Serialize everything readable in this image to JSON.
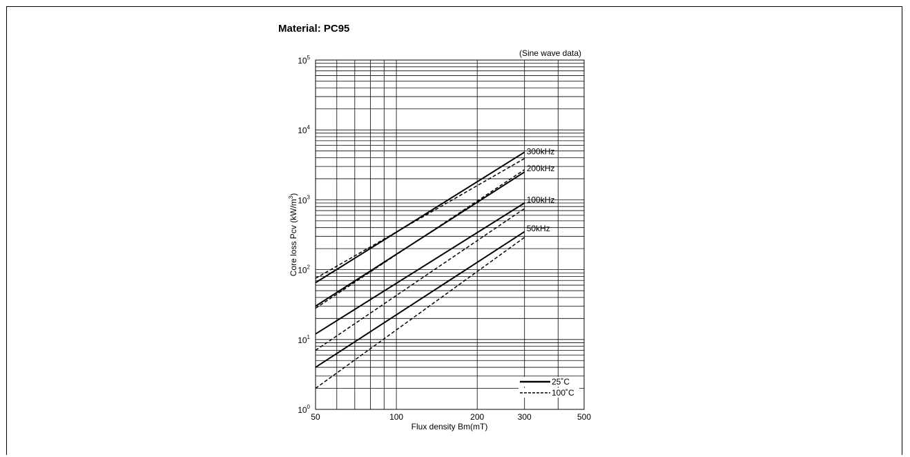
{
  "title": "Material: PC95",
  "note": "(Sine wave data)",
  "chart_data": {
    "type": "line",
    "xscale": "log",
    "yscale": "log",
    "xlim": [
      50,
      500
    ],
    "ylim": [
      1,
      100000
    ],
    "xlabel": "Flux density Bm(mT)",
    "ylabel_main": "Core loss Pcv (kW/m",
    "ylabel_sup": "3",
    "ylabel_end": ")",
    "xticks": [
      {
        "v": 50,
        "label": "50"
      },
      {
        "v": 100,
        "label": "100"
      },
      {
        "v": 200,
        "label": "200"
      },
      {
        "v": 300,
        "label": "300"
      },
      {
        "v": 500,
        "label": "500"
      }
    ],
    "yticks": [
      {
        "v": 1,
        "base": "10",
        "exp": "0"
      },
      {
        "v": 10,
        "base": "10",
        "exp": "1"
      },
      {
        "v": 100,
        "base": "10",
        "exp": "2"
      },
      {
        "v": 1000,
        "base": "10",
        "exp": "3"
      },
      {
        "v": 10000,
        "base": "10",
        "exp": "4"
      },
      {
        "v": 100000,
        "base": "10",
        "exp": "5"
      }
    ],
    "series": [
      {
        "name": "25˚C",
        "freq": "300kHz",
        "style": "solid",
        "x": [
          50,
          300
        ],
        "y": [
          65,
          4800
        ]
      },
      {
        "name": "100˚C",
        "freq": "300kHz",
        "style": "dashed",
        "x": [
          50,
          300
        ],
        "y": [
          75,
          3900
        ]
      },
      {
        "name": "25˚C",
        "freq": "200kHz",
        "style": "solid",
        "x": [
          50,
          300
        ],
        "y": [
          30,
          2500
        ]
      },
      {
        "name": "100˚C",
        "freq": "200kHz",
        "style": "dashed",
        "x": [
          50,
          300
        ],
        "y": [
          28,
          2700
        ]
      },
      {
        "name": "25˚C",
        "freq": "100kHz",
        "style": "solid",
        "x": [
          50,
          300
        ],
        "y": [
          12,
          900
        ]
      },
      {
        "name": "100˚C",
        "freq": "100kHz",
        "style": "dashed",
        "x": [
          50,
          300
        ],
        "y": [
          7,
          750
        ]
      },
      {
        "name": "25˚C",
        "freq": "50kHz",
        "style": "solid",
        "x": [
          50,
          300
        ],
        "y": [
          4,
          350
        ]
      },
      {
        "name": "100˚C",
        "freq": "50kHz",
        "style": "dashed",
        "x": [
          50,
          300
        ],
        "y": [
          2,
          290
        ]
      }
    ],
    "curve_labels": [
      {
        "text": "300kHz",
        "y": 4900
      },
      {
        "text": "200kHz",
        "y": 2800
      },
      {
        "text": "100kHz",
        "y": 1000
      },
      {
        "text": "50kHz",
        "y": 390
      }
    ],
    "legend": {
      "position": "bottom-right",
      "entries": [
        {
          "label": "25˚C",
          "style": "solid"
        },
        {
          "label": "100˚C",
          "style": "dashed"
        }
      ]
    },
    "grid": true
  }
}
